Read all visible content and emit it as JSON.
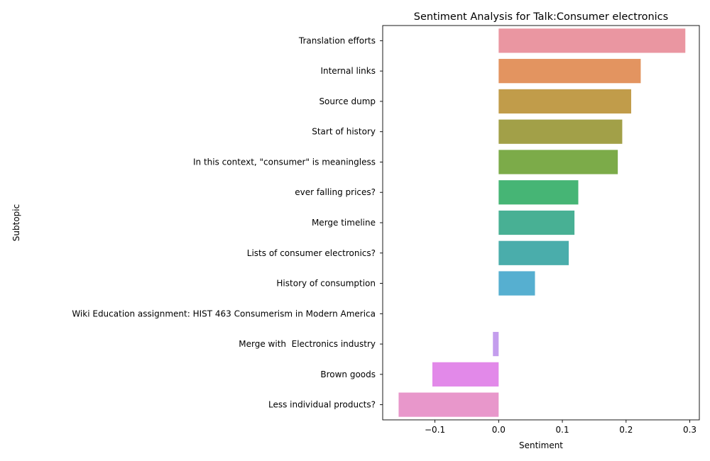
{
  "chart_data": {
    "type": "bar",
    "orientation": "horizontal",
    "title": "Sentiment Analysis for Talk:Consumer electronics",
    "xlabel": "Sentiment",
    "ylabel": "Subtopic",
    "xlim": [
      -0.182,
      0.315
    ],
    "xticks": [
      -0.1,
      0.0,
      0.1,
      0.2,
      0.3
    ],
    "xtick_labels": [
      "−0.1",
      "0.0",
      "0.1",
      "0.2",
      "0.3"
    ],
    "grid": false,
    "legend": "none",
    "categories": [
      "Translation efforts",
      "Internal links",
      "Source dump",
      "Start of history",
      "In this context, \"consumer\" is meaningless",
      "ever falling prices?",
      "Merge timeline",
      "Lists of consumer electronics?",
      "History of consumption",
      "Wiki Education assignment: HIST 463 Consumerism in Modern America",
      "Merge with  Electronics industry",
      "Brown goods",
      "Less individual products?"
    ],
    "values": [
      0.293,
      0.223,
      0.208,
      0.194,
      0.187,
      0.125,
      0.119,
      0.11,
      0.057,
      0.0,
      -0.009,
      -0.104,
      -0.157
    ],
    "colors": [
      "#ea96a1",
      "#e39460",
      "#c19c4a",
      "#a2a048",
      "#7cab49",
      "#46b575",
      "#48b094",
      "#4aadab",
      "#56afd0",
      "#9ba9ea",
      "#c49ded",
      "#e289e9",
      "#e897cb"
    ]
  }
}
